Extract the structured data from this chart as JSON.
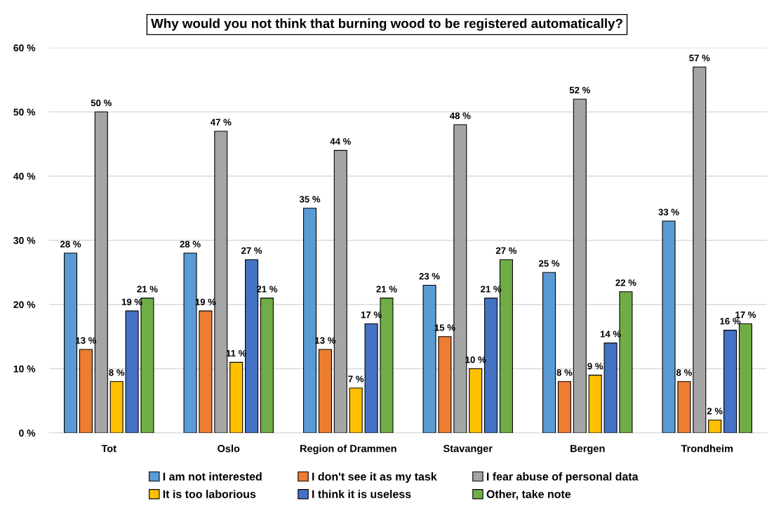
{
  "chart_data": {
    "type": "bar",
    "title": "Why would you not think that burning wood to be registered automatically?",
    "categories": [
      "Tot",
      "Oslo",
      "Region of Drammen",
      "Stavanger",
      "Bergen",
      "Trondheim"
    ],
    "series": [
      {
        "name": "I am not interested",
        "color": "#5b9bd5",
        "values": [
          28,
          28,
          35,
          23,
          25,
          33
        ],
        "value_labels": [
          "28 %",
          "28 %",
          "35 %",
          "23 %",
          "25 %",
          "33 %"
        ]
      },
      {
        "name": "I don't see it as my task",
        "color": "#ed7d31",
        "values": [
          13,
          19,
          13,
          15,
          8,
          8
        ],
        "value_labels": [
          "13 %",
          "19 %",
          "13 %",
          "15 %",
          "8 %",
          "8 %"
        ]
      },
      {
        "name": "I fear abuse of personal data",
        "color": "#a5a5a5",
        "values": [
          50,
          47,
          44,
          48,
          52,
          57
        ],
        "value_labels": [
          "50 %",
          "47 %",
          "44 %",
          "48 %",
          "52 %",
          "57 %"
        ]
      },
      {
        "name": "It is too laborious",
        "color": "#ffc000",
        "values": [
          8,
          11,
          7,
          10,
          9,
          2
        ],
        "value_labels": [
          "8 %",
          "11 %",
          "7 %",
          "10 %",
          "9 %",
          "2 %"
        ]
      },
      {
        "name": "I think it is useless",
        "color": "#4472c4",
        "values": [
          19,
          27,
          17,
          21,
          14,
          16
        ],
        "value_labels": [
          "19 %",
          "27 %",
          "17 %",
          "21 %",
          "14 %",
          "16 %"
        ]
      },
      {
        "name": "Other, take note",
        "color": "#70ad47",
        "values": [
          21,
          21,
          21,
          27,
          22,
          17
        ],
        "value_labels": [
          "21 %",
          "21 %",
          "21 %",
          "27 %",
          "22 %",
          "17 %"
        ]
      }
    ],
    "ylim": [
      0,
      60
    ],
    "yticks": [
      {
        "value": 0,
        "label": "0 %"
      },
      {
        "value": 10,
        "label": "10 %"
      },
      {
        "value": 20,
        "label": "20 %"
      },
      {
        "value": 30,
        "label": "30 %"
      },
      {
        "value": 40,
        "label": "40 %"
      },
      {
        "value": 50,
        "label": "50 %"
      },
      {
        "value": 60,
        "label": "60 %"
      }
    ],
    "grid": "y",
    "legend": "bottom"
  }
}
